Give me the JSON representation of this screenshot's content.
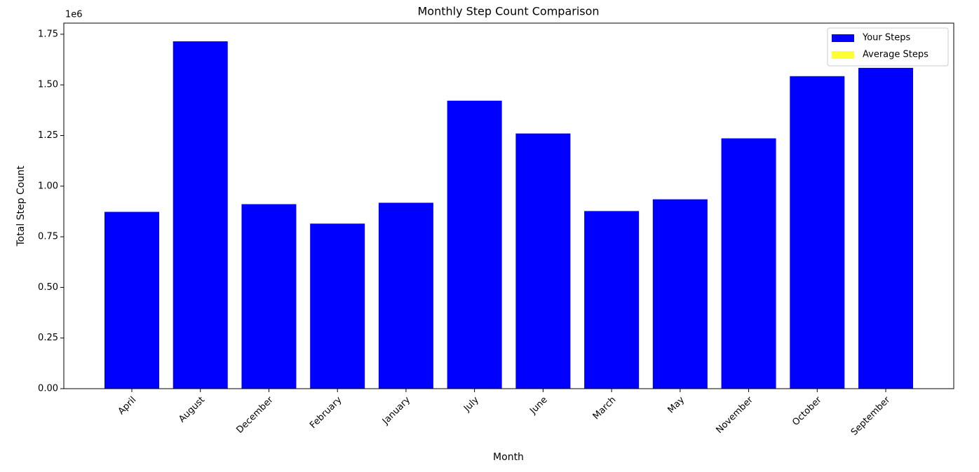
{
  "chart_data": {
    "type": "bar",
    "title": "Monthly Step Count Comparison",
    "xlabel": "Month",
    "ylabel": "Total Step Count",
    "y_offset_label": "1e6",
    "categories": [
      "April",
      "August",
      "December",
      "February",
      "January",
      "July",
      "June",
      "March",
      "May",
      "November",
      "October",
      "September"
    ],
    "series": [
      {
        "name": "Your Steps",
        "color": "#0000ff",
        "values": [
          873000,
          1715000,
          911000,
          815000,
          918000,
          1422000,
          1260000,
          877000,
          935000,
          1236000,
          1543000,
          1584000
        ]
      },
      {
        "name": "Average Steps",
        "color": "#ffff33",
        "values": [
          null,
          null,
          null,
          null,
          null,
          null,
          null,
          null,
          null,
          null,
          null,
          null
        ]
      }
    ],
    "ylim": [
      0,
      1805000
    ],
    "yticks": [
      {
        "value": 0,
        "label": "0.00"
      },
      {
        "value": 250000,
        "label": "0.25"
      },
      {
        "value": 500000,
        "label": "0.50"
      },
      {
        "value": 750000,
        "label": "0.75"
      },
      {
        "value": 1000000,
        "label": "1.00"
      },
      {
        "value": 1250000,
        "label": "1.25"
      },
      {
        "value": 1500000,
        "label": "1.50"
      },
      {
        "value": 1750000,
        "label": "1.75"
      }
    ],
    "legend": "upper right"
  }
}
